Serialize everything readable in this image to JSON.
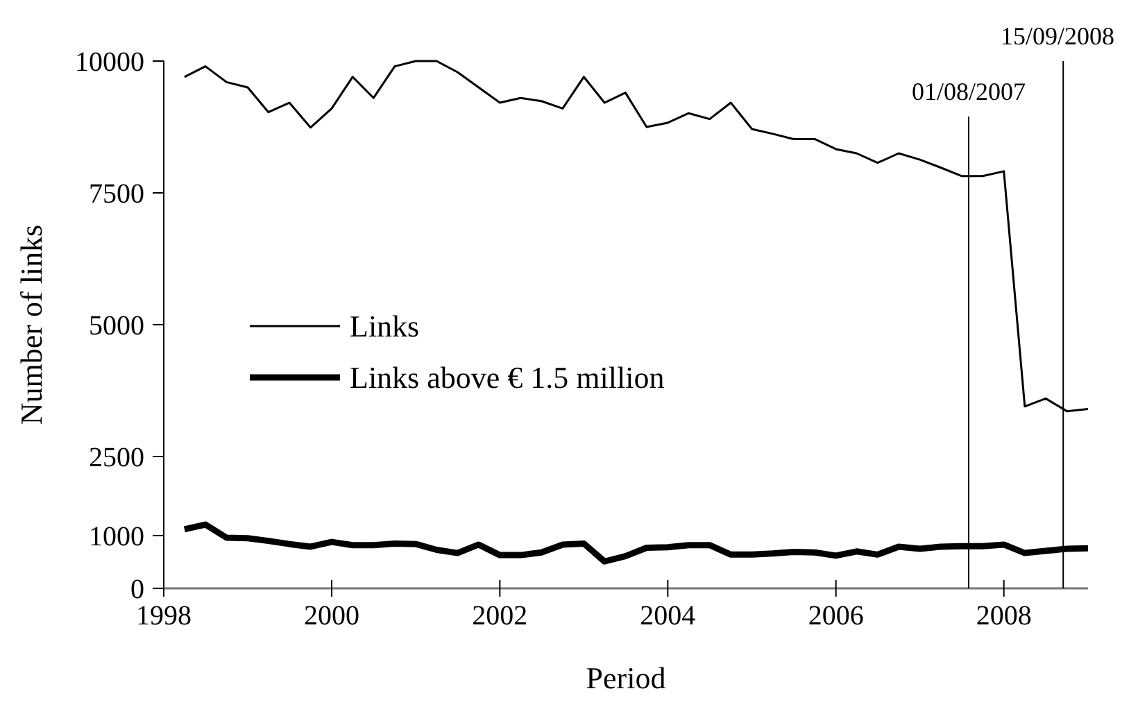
{
  "chart_data": {
    "type": "line",
    "xlabel": "Period",
    "ylabel": "Number of links",
    "x": [
      "1998-04",
      "1998-07",
      "1998-10",
      "1999-01",
      "1999-04",
      "1999-07",
      "1999-10",
      "2000-01",
      "2000-04",
      "2000-07",
      "2000-10",
      "2001-01",
      "2001-04",
      "2001-07",
      "2001-10",
      "2002-01",
      "2002-04",
      "2002-07",
      "2002-10",
      "2003-01",
      "2003-04",
      "2003-07",
      "2003-10",
      "2004-01",
      "2004-04",
      "2004-07",
      "2004-10",
      "2005-01",
      "2005-04",
      "2005-07",
      "2005-10",
      "2006-01",
      "2006-04",
      "2006-07",
      "2006-10",
      "2007-01",
      "2007-04",
      "2007-07",
      "2007-10",
      "2008-01",
      "2008-04",
      "2008-07",
      "2008-10",
      "2009-01"
    ],
    "series": [
      {
        "name": "Links",
        "color": "#000000",
        "values": [
          9700,
          9900,
          9600,
          9500,
          9030,
          9210,
          8740,
          9100,
          9700,
          9300,
          9900,
          10000,
          10000,
          9790,
          9500,
          9210,
          9300,
          9240,
          9100,
          9700,
          9210,
          9400,
          8750,
          8830,
          9010,
          8900,
          9210,
          8710,
          8620,
          8520,
          8520,
          8330,
          8250,
          8070,
          8250,
          8130,
          7980,
          7820,
          7820,
          7910,
          3450,
          3600,
          3360,
          3400
        ]
      },
      {
        "name": "Links above € 1.5 million",
        "color": "#000000",
        "values": [
          1120,
          1210,
          960,
          950,
          900,
          840,
          790,
          880,
          820,
          820,
          850,
          840,
          730,
          670,
          830,
          630,
          630,
          680,
          830,
          850,
          510,
          610,
          770,
          780,
          820,
          820,
          640,
          640,
          660,
          690,
          680,
          620,
          700,
          640,
          790,
          750,
          790,
          800,
          800,
          830,
          670,
          710,
          750,
          760
        ]
      }
    ],
    "xlim": [
      "1998",
      "2009"
    ],
    "xticks": [
      "1998",
      "2000",
      "2002",
      "2004",
      "2006",
      "2008"
    ],
    "ylim": [
      0,
      10000
    ],
    "yticks": [
      0,
      1000,
      2500,
      5000,
      7500,
      10000
    ],
    "ref_lines": [
      {
        "axis": "x",
        "value": "2007-08-01",
        "label": "01/08/2007",
        "color": "#000000"
      },
      {
        "axis": "x",
        "value": "2008-09-15",
        "label": "15/09/2008",
        "color": "#000000"
      }
    ],
    "legend": "left",
    "grid": false
  }
}
